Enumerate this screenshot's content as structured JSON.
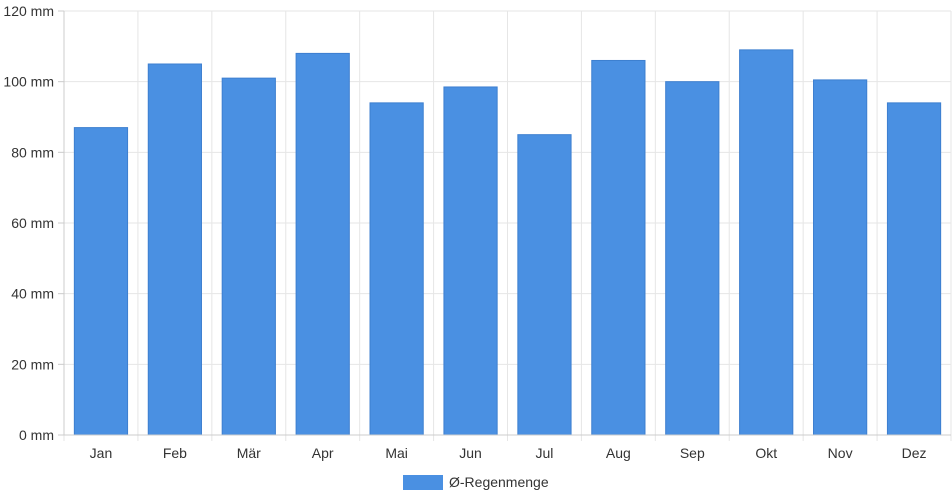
{
  "chart_data": {
    "type": "bar",
    "categories": [
      "Jan",
      "Feb",
      "Mär",
      "Apr",
      "Mai",
      "Jun",
      "Jul",
      "Aug",
      "Sep",
      "Okt",
      "Nov",
      "Dez"
    ],
    "series": [
      {
        "name": "Ø-Regenmenge",
        "values": [
          87,
          105,
          101,
          108,
          94,
          98.5,
          85,
          106,
          100,
          109,
          100.5,
          94
        ],
        "color": "#4a90e2"
      }
    ],
    "y_ticks": [
      "0 mm",
      "20 mm",
      "40 mm",
      "60 mm",
      "80 mm",
      "100 mm",
      "120 mm"
    ],
    "ylim": [
      0,
      120
    ],
    "unit": "mm",
    "grid": true,
    "legend_position": "bottom-center"
  }
}
